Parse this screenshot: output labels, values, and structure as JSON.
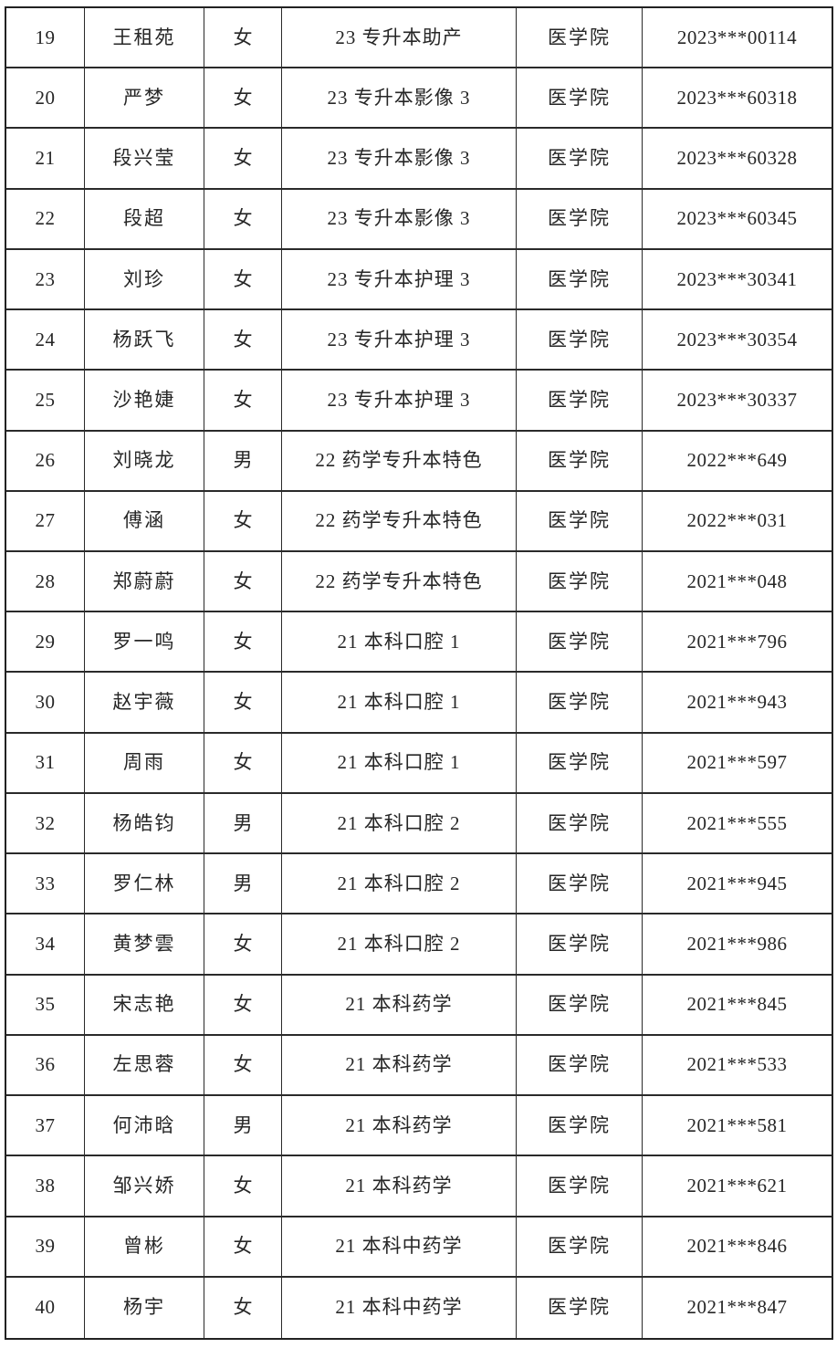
{
  "table": {
    "college_name": "医学院",
    "rows": [
      {
        "seq": "19",
        "name": "王租苑",
        "gender": "女",
        "class_name": "23 专升本助产",
        "college": "医学院",
        "student_id": "2023***00114"
      },
      {
        "seq": "20",
        "name": "严梦",
        "gender": "女",
        "class_name": "23 专升本影像 3",
        "college": "医学院",
        "student_id": "2023***60318"
      },
      {
        "seq": "21",
        "name": "段兴莹",
        "gender": "女",
        "class_name": "23 专升本影像 3",
        "college": "医学院",
        "student_id": "2023***60328"
      },
      {
        "seq": "22",
        "name": "段超",
        "gender": "女",
        "class_name": "23 专升本影像 3",
        "college": "医学院",
        "student_id": "2023***60345"
      },
      {
        "seq": "23",
        "name": "刘珍",
        "gender": "女",
        "class_name": "23 专升本护理 3",
        "college": "医学院",
        "student_id": "2023***30341"
      },
      {
        "seq": "24",
        "name": "杨跃飞",
        "gender": "女",
        "class_name": "23 专升本护理 3",
        "college": "医学院",
        "student_id": "2023***30354"
      },
      {
        "seq": "25",
        "name": "沙艳婕",
        "gender": "女",
        "class_name": "23 专升本护理 3",
        "college": "医学院",
        "student_id": "2023***30337"
      },
      {
        "seq": "26",
        "name": "刘晓龙",
        "gender": "男",
        "class_name": "22 药学专升本特色",
        "college": "医学院",
        "student_id": "2022***649"
      },
      {
        "seq": "27",
        "name": "傅涵",
        "gender": "女",
        "class_name": "22 药学专升本特色",
        "college": "医学院",
        "student_id": "2022***031"
      },
      {
        "seq": "28",
        "name": "郑蔚蔚",
        "gender": "女",
        "class_name": "22 药学专升本特色",
        "college": "医学院",
        "student_id": "2021***048"
      },
      {
        "seq": "29",
        "name": "罗一鸣",
        "gender": "女",
        "class_name": "21 本科口腔 1",
        "college": "医学院",
        "student_id": "2021***796"
      },
      {
        "seq": "30",
        "name": "赵宇薇",
        "gender": "女",
        "class_name": "21 本科口腔 1",
        "college": "医学院",
        "student_id": "2021***943"
      },
      {
        "seq": "31",
        "name": "周雨",
        "gender": "女",
        "class_name": "21 本科口腔 1",
        "college": "医学院",
        "student_id": "2021***597"
      },
      {
        "seq": "32",
        "name": "杨皓钧",
        "gender": "男",
        "class_name": "21 本科口腔 2",
        "college": "医学院",
        "student_id": "2021***555"
      },
      {
        "seq": "33",
        "name": "罗仁林",
        "gender": "男",
        "class_name": "21 本科口腔 2",
        "college": "医学院",
        "student_id": "2021***945"
      },
      {
        "seq": "34",
        "name": "黄梦雲",
        "gender": "女",
        "class_name": "21 本科口腔 2",
        "college": "医学院",
        "student_id": "2021***986"
      },
      {
        "seq": "35",
        "name": "宋志艳",
        "gender": "女",
        "class_name": "21 本科药学",
        "college": "医学院",
        "student_id": "2021***845"
      },
      {
        "seq": "36",
        "name": "左思蓉",
        "gender": "女",
        "class_name": "21 本科药学",
        "college": "医学院",
        "student_id": "2021***533"
      },
      {
        "seq": "37",
        "name": "何沛晗",
        "gender": "男",
        "class_name": "21 本科药学",
        "college": "医学院",
        "student_id": "2021***581"
      },
      {
        "seq": "38",
        "name": "邹兴娇",
        "gender": "女",
        "class_name": "21 本科药学",
        "college": "医学院",
        "student_id": "2021***621"
      },
      {
        "seq": "39",
        "name": "曾彬",
        "gender": "女",
        "class_name": "21 本科中药学",
        "college": "医学院",
        "student_id": "2021***846"
      },
      {
        "seq": "40",
        "name": "杨宇",
        "gender": "女",
        "class_name": "21 本科中药学",
        "college": "医学院",
        "student_id": "2021***847"
      }
    ],
    "colors": {
      "border": "#2a2a2a",
      "text": "#262626",
      "background": "#ffffff"
    }
  }
}
